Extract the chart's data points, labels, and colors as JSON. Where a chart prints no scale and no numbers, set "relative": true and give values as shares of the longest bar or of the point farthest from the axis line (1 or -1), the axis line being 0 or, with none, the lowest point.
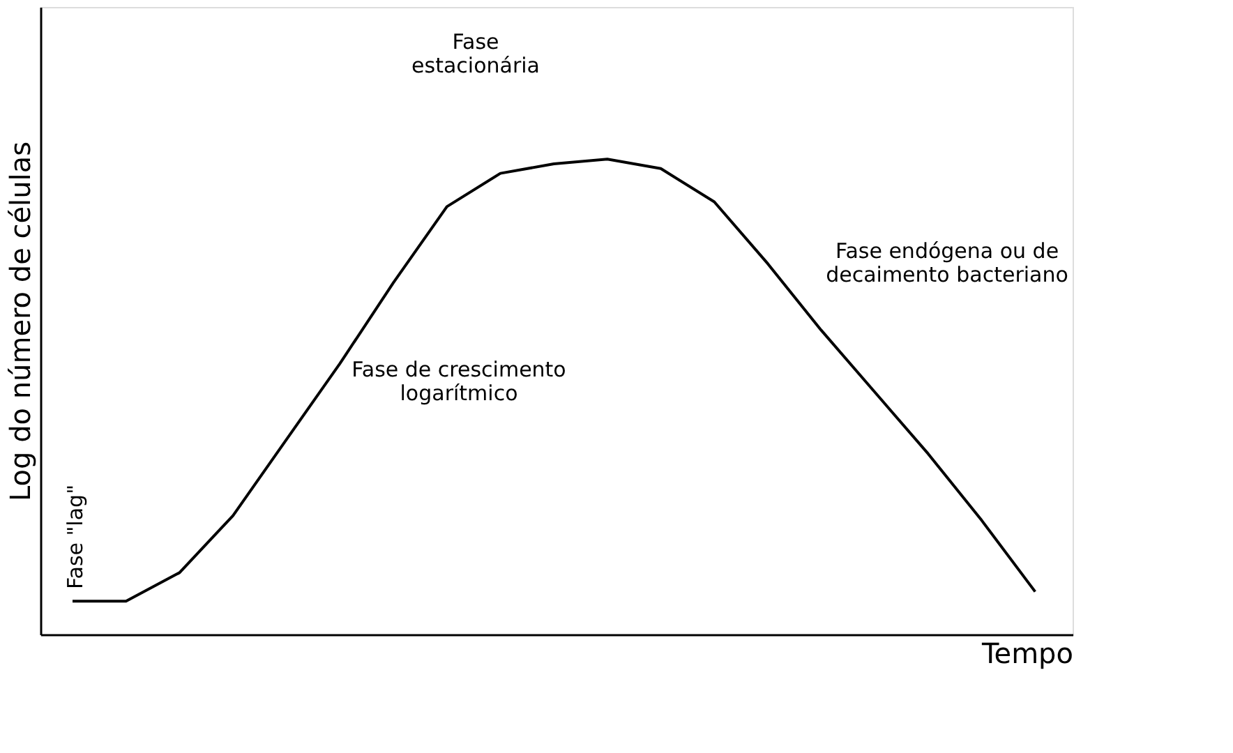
{
  "chart_data": {
    "type": "line",
    "relative": true,
    "xlabel": "Tempo",
    "ylabel": "Log do número de células",
    "tick_labels": false,
    "categories": [
      null,
      null,
      null,
      null,
      null,
      null,
      null,
      null,
      null,
      null,
      null,
      null,
      null,
      null,
      null,
      null,
      null,
      null,
      null
    ],
    "series": [
      {
        "color": "#000000",
        "values": [
          0.07,
          0.07,
          0.13,
          0.25,
          0.41,
          0.57,
          0.74,
          0.9,
          0.97,
          0.99,
          1,
          0.98,
          0.91,
          0.78,
          0.64,
          0.51,
          0.38,
          0.24,
          0.09
        ]
      }
    ],
    "annotations": [
      "Fase \"lag\"",
      "Fase\nestacionária",
      "Fase de crescimento\nlogarítmico",
      "Fase endógena ou de\ndecaimento bacteriano"
    ]
  }
}
